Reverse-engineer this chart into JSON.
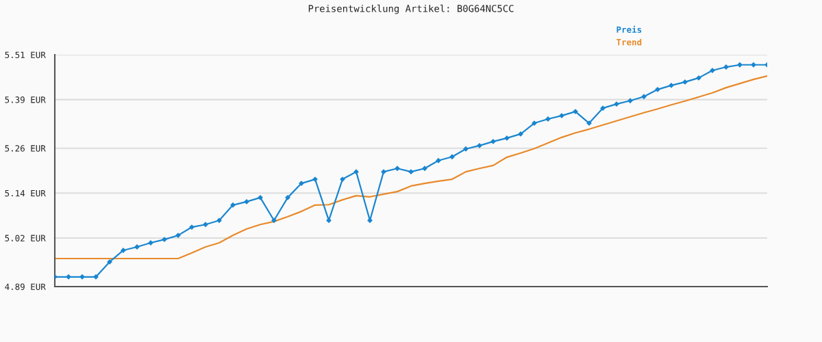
{
  "chart_data": {
    "type": "line",
    "title": "Preisentwicklung Artikel: B0G64NC5CC",
    "categories": [
      null,
      null,
      null,
      null,
      null,
      null,
      null,
      null,
      null,
      null,
      null,
      null,
      null,
      null,
      null,
      null,
      null,
      null,
      null,
      null,
      null,
      null,
      null,
      null,
      null,
      null,
      null,
      null,
      null,
      null,
      null,
      null,
      null,
      null,
      null,
      null,
      null,
      null,
      null,
      null,
      null,
      null,
      null,
      null,
      null,
      null,
      null,
      null,
      null,
      null,
      null,
      null,
      null
    ],
    "series": [
      {
        "name": "Preis",
        "color": "#1a86d0",
        "marker": "diamond",
        "values": [
          4.916,
          4.916,
          4.916,
          4.916,
          4.956,
          4.987,
          4.996,
          5.007,
          5.016,
          5.027,
          5.049,
          5.056,
          5.067,
          5.108,
          5.117,
          5.128,
          5.067,
          5.128,
          5.166,
          5.177,
          5.067,
          5.177,
          5.197,
          5.067,
          5.197,
          5.206,
          5.197,
          5.206,
          5.227,
          5.237,
          5.258,
          5.267,
          5.278,
          5.287,
          5.298,
          5.327,
          5.338,
          5.347,
          5.358,
          5.327,
          5.367,
          5.378,
          5.387,
          5.398,
          5.417,
          5.428,
          5.437,
          5.448,
          5.468,
          5.477,
          5.483,
          5.483,
          5.483
        ]
      },
      {
        "name": "Trend",
        "color": "#e8892a",
        "marker": "none",
        "values": [
          4.965,
          4.965,
          4.965,
          4.965,
          4.965,
          4.965,
          4.965,
          4.965,
          4.965,
          4.965,
          4.98,
          4.996,
          5.007,
          5.027,
          5.044,
          5.056,
          5.064,
          5.077,
          5.091,
          5.108,
          5.109,
          5.122,
          5.133,
          5.13,
          5.137,
          5.144,
          5.159,
          5.166,
          5.172,
          5.177,
          5.197,
          5.206,
          5.214,
          5.236,
          5.247,
          5.259,
          5.274,
          5.289,
          5.301,
          5.311,
          5.322,
          5.333,
          5.344,
          5.355,
          5.365,
          5.376,
          5.386,
          5.397,
          5.408,
          5.422,
          5.433,
          5.444,
          5.453
        ]
      }
    ],
    "ylim": [
      4.89,
      5.51
    ],
    "yticks": [
      {
        "value": 4.89,
        "label": "4.89 EUR"
      },
      {
        "value": 5.02,
        "label": "5.02 EUR"
      },
      {
        "value": 5.14,
        "label": "5.14 EUR"
      },
      {
        "value": 5.26,
        "label": "5.26 EUR"
      },
      {
        "value": 5.39,
        "label": "5.39 EUR"
      },
      {
        "value": 5.51,
        "label": "5.51 EUR"
      }
    ],
    "grid": "y",
    "legend": "top right",
    "line_style": "solid"
  }
}
